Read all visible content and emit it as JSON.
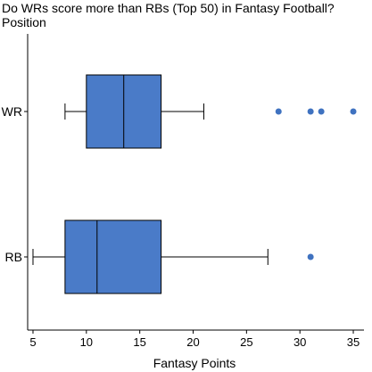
{
  "chart_data": {
    "type": "box",
    "orientation": "horizontal",
    "title": "Do WRs score more than RBs (Top 50) in Fantasy Football?",
    "ylabel": "Position",
    "xlabel": "Fantasy Points",
    "xlim": [
      4.5,
      36
    ],
    "xticks": [
      5,
      10,
      15,
      20,
      25,
      30,
      35
    ],
    "box_color": "#4a7bc8",
    "outlier_color": "#3f72c0",
    "series": [
      {
        "category": "WR",
        "whisker_low": 8,
        "q1": 10,
        "median": 13.5,
        "q3": 17,
        "whisker_high": 21,
        "outliers": [
          28,
          31,
          32,
          35
        ]
      },
      {
        "category": "RB",
        "whisker_low": 5,
        "q1": 8,
        "median": 11,
        "q3": 17,
        "whisker_high": 27,
        "outliers": [
          31
        ]
      }
    ]
  }
}
